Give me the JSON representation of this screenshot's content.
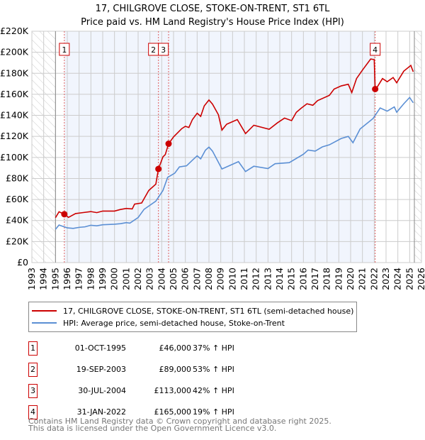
{
  "chart_data": {
    "type": "line",
    "title": "17, CHILGROVE CLOSE, STOKE-ON-TRENT, ST1 6TL",
    "subtitle": "Price paid vs. HM Land Registry's House Price Index (HPI)",
    "xlim": [
      1993,
      2026
    ],
    "ylim": [
      0,
      220000
    ],
    "x_ticks": [
      "1993",
      "1994",
      "1995",
      "1996",
      "1997",
      "1998",
      "1999",
      "2000",
      "2001",
      "2002",
      "2003",
      "2004",
      "2005",
      "2006",
      "2007",
      "2008",
      "2009",
      "2010",
      "2011",
      "2012",
      "2013",
      "2014",
      "2015",
      "2016",
      "2017",
      "2018",
      "2019",
      "2020",
      "2021",
      "2022",
      "2023",
      "2024",
      "2025",
      "2026"
    ],
    "y_ticks": [
      {
        "v": 0,
        "label": "£0"
      },
      {
        "v": 20000,
        "label": "£20K"
      },
      {
        "v": 40000,
        "label": "£40K"
      },
      {
        "v": 60000,
        "label": "£60K"
      },
      {
        "v": 80000,
        "label": "£80K"
      },
      {
        "v": 100000,
        "label": "£100K"
      },
      {
        "v": 120000,
        "label": "£120K"
      },
      {
        "v": 140000,
        "label": "£140K"
      },
      {
        "v": 160000,
        "label": "£160K"
      },
      {
        "v": 180000,
        "label": "£180K"
      },
      {
        "v": 200000,
        "label": "£200K"
      },
      {
        "v": 220000,
        "label": "£220K"
      }
    ],
    "grid": true,
    "hatched_ranges": [
      [
        1993,
        1995
      ],
      [
        2025.4,
        2026
      ]
    ],
    "series": [
      {
        "name": "17, CHILGROVE CLOSE, STOKE-ON-TRENT, ST1 6TL (semi-detached house)",
        "color": "#cc0000",
        "points": [
          [
            1995.0,
            42.7
          ],
          [
            1995.3,
            48.3
          ],
          [
            1995.75,
            46
          ],
          [
            1996.1,
            43
          ],
          [
            1996.7,
            46.6
          ],
          [
            1997.3,
            47.5
          ],
          [
            1998,
            48.5
          ],
          [
            1998.5,
            47.5
          ],
          [
            1999,
            49
          ],
          [
            2000,
            49
          ],
          [
            2000.5,
            50.5
          ],
          [
            2001,
            51.5
          ],
          [
            2001.5,
            51
          ],
          [
            2001.7,
            55.6
          ],
          [
            2002.3,
            56.7
          ],
          [
            2002.9,
            68.6
          ],
          [
            2003.5,
            74.6
          ],
          [
            2003.72,
            89
          ],
          [
            2004.1,
            100.5
          ],
          [
            2004.3,
            102.7
          ],
          [
            2004.58,
            113
          ],
          [
            2005.0,
            119.5
          ],
          [
            2005.7,
            127.4
          ],
          [
            2006.0,
            129.6
          ],
          [
            2006.3,
            128.5
          ],
          [
            2006.6,
            136
          ],
          [
            2007.0,
            142
          ],
          [
            2007.3,
            139
          ],
          [
            2007.6,
            149
          ],
          [
            2008.0,
            154.6
          ],
          [
            2008.3,
            150.7
          ],
          [
            2008.8,
            140.6
          ],
          [
            2009.1,
            126
          ],
          [
            2009.5,
            131.6
          ],
          [
            2010.4,
            136
          ],
          [
            2011.1,
            122.7
          ],
          [
            2011.8,
            130.6
          ],
          [
            2013.1,
            126.8
          ],
          [
            2013.8,
            132.9
          ],
          [
            2014.4,
            137.4
          ],
          [
            2015.0,
            135
          ],
          [
            2015.4,
            142.9
          ],
          [
            2015.8,
            146.7
          ],
          [
            2016.3,
            151
          ],
          [
            2016.8,
            149.6
          ],
          [
            2017.2,
            154
          ],
          [
            2018.2,
            159
          ],
          [
            2018.6,
            165
          ],
          [
            2019.2,
            168
          ],
          [
            2019.8,
            169.6
          ],
          [
            2020.1,
            161.7
          ],
          [
            2020.5,
            175
          ],
          [
            2021.0,
            183
          ],
          [
            2021.7,
            193.6
          ],
          [
            2022.0,
            193
          ],
          [
            2022.08,
            165
          ],
          [
            2022.2,
            166
          ],
          [
            2022.7,
            175
          ],
          [
            2023.1,
            172
          ],
          [
            2023.6,
            176
          ],
          [
            2023.9,
            171
          ],
          [
            2024.5,
            182
          ],
          [
            2025.1,
            187.5
          ],
          [
            2025.3,
            181.5
          ]
        ]
      },
      {
        "name": "HPI: Average price, semi-detached house, Stoke-on-Trent",
        "color": "#5b8fd4",
        "points": [
          [
            1995.0,
            31.6
          ],
          [
            1995.3,
            35.7
          ],
          [
            1996,
            33
          ],
          [
            1996.5,
            32.5
          ],
          [
            1997,
            33.5
          ],
          [
            1997.5,
            34
          ],
          [
            1998,
            35.5
          ],
          [
            1998.5,
            35
          ],
          [
            1999,
            36
          ],
          [
            2000,
            36.5
          ],
          [
            2000.5,
            37
          ],
          [
            2001,
            38
          ],
          [
            2001.3,
            37.5
          ],
          [
            2002,
            42.8
          ],
          [
            2002.5,
            50.6
          ],
          [
            2003.5,
            58.4
          ],
          [
            2004.1,
            68.5
          ],
          [
            2004.5,
            81
          ],
          [
            2005.1,
            85
          ],
          [
            2005.5,
            91
          ],
          [
            2006.1,
            92
          ],
          [
            2006.6,
            97.4
          ],
          [
            2007.0,
            101.5
          ],
          [
            2007.3,
            98.6
          ],
          [
            2007.7,
            106.9
          ],
          [
            2008.0,
            109.8
          ],
          [
            2008.3,
            106
          ],
          [
            2009.1,
            89
          ],
          [
            2010.5,
            96
          ],
          [
            2011.1,
            86.6
          ],
          [
            2011.8,
            91.6
          ],
          [
            2013.0,
            89.4
          ],
          [
            2013.6,
            94
          ],
          [
            2014.8,
            95
          ],
          [
            2016.0,
            103
          ],
          [
            2016.4,
            107
          ],
          [
            2017.0,
            106
          ],
          [
            2017.6,
            110
          ],
          [
            2018.2,
            112
          ],
          [
            2019.2,
            118
          ],
          [
            2019.8,
            120
          ],
          [
            2020.2,
            114
          ],
          [
            2020.8,
            127
          ],
          [
            2021.9,
            137
          ],
          [
            2022.5,
            147
          ],
          [
            2023.1,
            144
          ],
          [
            2023.7,
            148
          ],
          [
            2023.9,
            143
          ],
          [
            2024.5,
            151
          ],
          [
            2025.0,
            157
          ],
          [
            2025.3,
            152
          ]
        ]
      }
    ],
    "sales": [
      {
        "id": "1",
        "x": 1995.75,
        "price": 46000
      },
      {
        "id": "2",
        "x": 2003.72,
        "price": 89000
      },
      {
        "id": "3",
        "x": 2004.58,
        "price": 113000
      },
      {
        "id": "4",
        "x": 2022.08,
        "price": 165000
      }
    ]
  },
  "legend": {
    "property": "17, CHILGROVE CLOSE, STOKE-ON-TRENT, ST1 6TL (semi-detached house)",
    "hpi": "HPI: Average price, semi-detached house, Stoke-on-Trent"
  },
  "transactions": [
    {
      "num": "1",
      "date": "01-OCT-1995",
      "price": "£46,000",
      "hpi": "37% ↑ HPI"
    },
    {
      "num": "2",
      "date": "19-SEP-2003",
      "price": "£89,000",
      "hpi": "53% ↑ HPI"
    },
    {
      "num": "3",
      "date": "30-JUL-2004",
      "price": "£113,000",
      "hpi": "42% ↑ HPI"
    },
    {
      "num": "4",
      "date": "31-JAN-2022",
      "price": "£165,000",
      "hpi": "19% ↑ HPI"
    }
  ],
  "footer": {
    "line1": "Contains HM Land Registry data © Crown copyright and database right 2025.",
    "line2": "This data is licensed under the Open Government Licence v3.0."
  }
}
